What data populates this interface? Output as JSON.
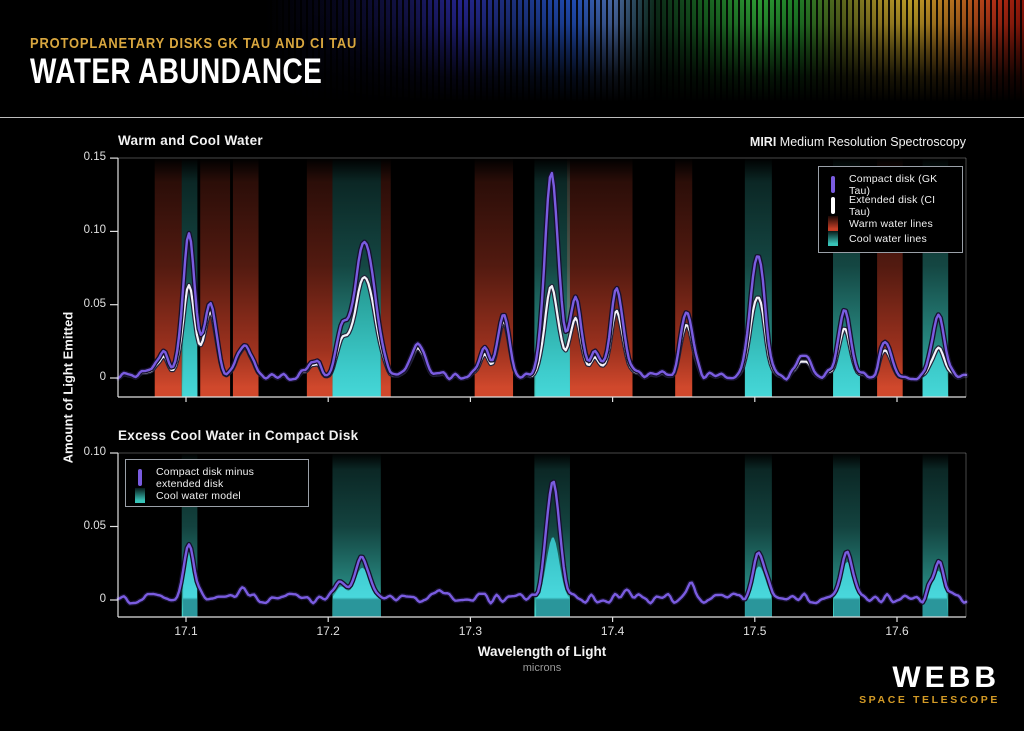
{
  "header": {
    "kicker": "PROTOPLANETARY DISKS GK TAU AND CI TAU",
    "title": "WATER ABUNDANCE"
  },
  "footer": {
    "logo": "WEBB",
    "logo_sub": "SPACE TELESCOPE"
  },
  "colors": {
    "accent_gold": "#d9a73f",
    "compact_purple": "#7a5ce0",
    "extended_white": "#f4f3fa",
    "warm_red": "#c43e26",
    "cool_teal": "#38c3b8",
    "model_cyan": "#49d8dc"
  },
  "chart_data": [
    {
      "type": "line",
      "title": "Warm and Cool Water",
      "right_label_bold": "MIRI",
      "right_label": "Medium Resolution Spectroscopy",
      "ylabel": "Amount of Light Emitted",
      "xlim": [
        17.052,
        17.648
      ],
      "ylim": [
        -0.013,
        0.15
      ],
      "grid": false,
      "legend_position": "top-right",
      "yticks": [
        {
          "v": 0,
          "label": "0"
        },
        {
          "v": 0.05,
          "label": "0.05"
        },
        {
          "v": 0.1,
          "label": "0.10"
        },
        {
          "v": 0.15,
          "label": "0.15"
        }
      ],
      "legend": [
        {
          "label": "Compact disk (GK Tau)",
          "swatch": "line",
          "color": "#7a5ce0"
        },
        {
          "label": "Extended disk (CI Tau)",
          "swatch": "line",
          "color": "#ffffff"
        },
        {
          "label": "Warm water lines",
          "swatch": "band",
          "color": "#c43e26"
        },
        {
          "label": "Cool water lines",
          "swatch": "band",
          "color": "#38c3b8"
        }
      ],
      "warm_bands": [
        [
          17.078,
          17.097
        ],
        [
          17.11,
          17.131
        ],
        [
          17.133,
          17.151
        ],
        [
          17.185,
          17.203
        ],
        [
          17.237,
          17.244
        ],
        [
          17.303,
          17.33
        ],
        [
          17.368,
          17.414
        ],
        [
          17.444,
          17.456
        ],
        [
          17.586,
          17.604
        ]
      ],
      "cool_bands": [
        [
          17.097,
          17.108
        ],
        [
          17.203,
          17.237
        ],
        [
          17.345,
          17.37
        ],
        [
          17.493,
          17.512
        ],
        [
          17.555,
          17.574
        ],
        [
          17.618,
          17.636
        ]
      ],
      "baseline": 0.0015,
      "noise_amp": 0.0032,
      "series": [
        {
          "name": "Compact disk (GK Tau)",
          "color": "#7a5ce0",
          "peaks": [
            [
              17.083,
              0.016,
              0.004
            ],
            [
              17.102,
              0.098,
              0.0042
            ],
            [
              17.117,
              0.051,
              0.0042
            ],
            [
              17.141,
              0.022,
              0.0045
            ],
            [
              17.189,
              0.012,
              0.004
            ],
            [
              17.209,
              0.026,
              0.004
            ],
            [
              17.2255,
              0.089,
              0.0075
            ],
            [
              17.263,
              0.024,
              0.0045
            ],
            [
              17.31,
              0.018,
              0.0035
            ],
            [
              17.3235,
              0.04,
              0.004
            ],
            [
              17.357,
              0.14,
              0.0048
            ],
            [
              17.374,
              0.055,
              0.004
            ],
            [
              17.388,
              0.018,
              0.003
            ],
            [
              17.403,
              0.06,
              0.0045
            ],
            [
              17.452,
              0.043,
              0.0042
            ],
            [
              17.502,
              0.083,
              0.005
            ],
            [
              17.535,
              0.016,
              0.0038
            ],
            [
              17.563,
              0.044,
              0.0042
            ],
            [
              17.592,
              0.022,
              0.004
            ],
            [
              17.629,
              0.042,
              0.0042
            ]
          ]
        },
        {
          "name": "Extended disk (CI Tau)",
          "color": "#ffffff",
          "peaks": [
            [
              17.083,
              0.013,
              0.004
            ],
            [
              17.102,
              0.063,
              0.0042
            ],
            [
              17.117,
              0.045,
              0.0042
            ],
            [
              17.141,
              0.021,
              0.0045
            ],
            [
              17.189,
              0.01,
              0.004
            ],
            [
              17.209,
              0.019,
              0.004
            ],
            [
              17.2255,
              0.066,
              0.0075
            ],
            [
              17.263,
              0.021,
              0.0045
            ],
            [
              17.31,
              0.014,
              0.0035
            ],
            [
              17.3235,
              0.036,
              0.004
            ],
            [
              17.357,
              0.063,
              0.0048
            ],
            [
              17.374,
              0.041,
              0.004
            ],
            [
              17.388,
              0.014,
              0.003
            ],
            [
              17.403,
              0.045,
              0.0045
            ],
            [
              17.452,
              0.035,
              0.0042
            ],
            [
              17.502,
              0.055,
              0.005
            ],
            [
              17.535,
              0.012,
              0.0038
            ],
            [
              17.563,
              0.032,
              0.0042
            ],
            [
              17.592,
              0.017,
              0.004
            ],
            [
              17.629,
              0.02,
              0.0042
            ]
          ]
        }
      ]
    },
    {
      "type": "line",
      "title": "Excess Cool Water in Compact Disk",
      "xlabel": "Wavelength of Light",
      "xunit": "microns",
      "xlim": [
        17.052,
        17.648
      ],
      "ylim": [
        -0.0115,
        0.1
      ],
      "grid": false,
      "legend_position": "top-left",
      "yticks": [
        {
          "v": 0,
          "label": "0"
        },
        {
          "v": 0.05,
          "label": "0.05"
        },
        {
          "v": 0.1,
          "label": "0.10"
        }
      ],
      "xticks": [
        {
          "v": 17.1,
          "label": "17.1"
        },
        {
          "v": 17.2,
          "label": "17.2"
        },
        {
          "v": 17.3,
          "label": "17.3"
        },
        {
          "v": 17.4,
          "label": "17.4"
        },
        {
          "v": 17.5,
          "label": "17.5"
        },
        {
          "v": 17.6,
          "label": "17.6"
        }
      ],
      "legend": [
        {
          "label": "Compact disk minus extended disk",
          "swatch": "line",
          "color": "#7a5ce0"
        },
        {
          "label": "Cool water model",
          "swatch": "band",
          "color": "#38c3b8"
        }
      ],
      "cool_bands": [
        [
          17.097,
          17.108
        ],
        [
          17.203,
          17.237
        ],
        [
          17.345,
          17.37
        ],
        [
          17.493,
          17.512
        ],
        [
          17.555,
          17.574
        ],
        [
          17.618,
          17.636
        ]
      ],
      "baseline": 0.001,
      "noise_amp": 0.0033,
      "series": [
        {
          "name": "Compact disk minus extended disk",
          "color": "#7a5ce0",
          "peaks": [
            [
              17.102,
              0.039,
              0.0038
            ],
            [
              17.14,
              0.007,
              0.0035
            ],
            [
              17.209,
              0.011,
              0.0035
            ],
            [
              17.224,
              0.027,
              0.005
            ],
            [
              17.28,
              0.006,
              0.0035
            ],
            [
              17.358,
              0.08,
              0.0045
            ],
            [
              17.41,
              0.008,
              0.0035
            ],
            [
              17.454,
              0.009,
              0.0035
            ],
            [
              17.503,
              0.029,
              0.0045
            ],
            [
              17.565,
              0.031,
              0.004
            ],
            [
              17.629,
              0.026,
              0.004
            ]
          ]
        },
        {
          "name": "Cool water model",
          "color": "#49d8dc",
          "peaks": [
            [
              17.102,
              0.033,
              0.0036
            ],
            [
              17.209,
              0.009,
              0.0035
            ],
            [
              17.224,
              0.022,
              0.005
            ],
            [
              17.358,
              0.043,
              0.0045
            ],
            [
              17.503,
              0.023,
              0.0045
            ],
            [
              17.565,
              0.026,
              0.004
            ],
            [
              17.629,
              0.02,
              0.004
            ]
          ]
        }
      ]
    }
  ]
}
